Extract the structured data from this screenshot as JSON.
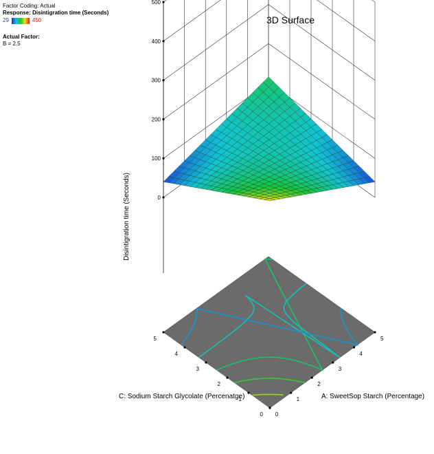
{
  "header": {
    "factor_coding": "Factor Coding: Actual",
    "response": "Response: Disintigration time (Seconds)",
    "color_min": "29",
    "color_max": "450",
    "actual_factor_title": "Actual Factor:",
    "actual_factor_value": "B = 2.5"
  },
  "chart_data": {
    "type": "surface",
    "title": "3D Surface",
    "zlabel": "Disintigration time (Seconds)",
    "xlabel": "A: SweetSop Starch (Percentage)",
    "ylabel": "C: Sodium Starch Glycolate (Percenatge)",
    "xlim": [
      0,
      5
    ],
    "ylim": [
      0,
      5
    ],
    "zlim": [
      0,
      500
    ],
    "z_ticks": [
      "0",
      "100",
      "200",
      "300",
      "400",
      "500"
    ],
    "x_ticks": [
      "0",
      "1",
      "2",
      "3",
      "4",
      "5"
    ],
    "y_ticks": [
      "0",
      "1",
      "2",
      "3",
      "4",
      "5"
    ],
    "surface_z": {
      "corner_A0_C0": 185,
      "corner_A5_C0": 40,
      "corner_A0_C5": 40,
      "corner_A5_C5": 115
    },
    "colorscale": [
      "#1a2bd9",
      "#12c3d2",
      "#19c43a",
      "#e8e01a",
      "#e12020"
    ],
    "contour_count": 5
  }
}
